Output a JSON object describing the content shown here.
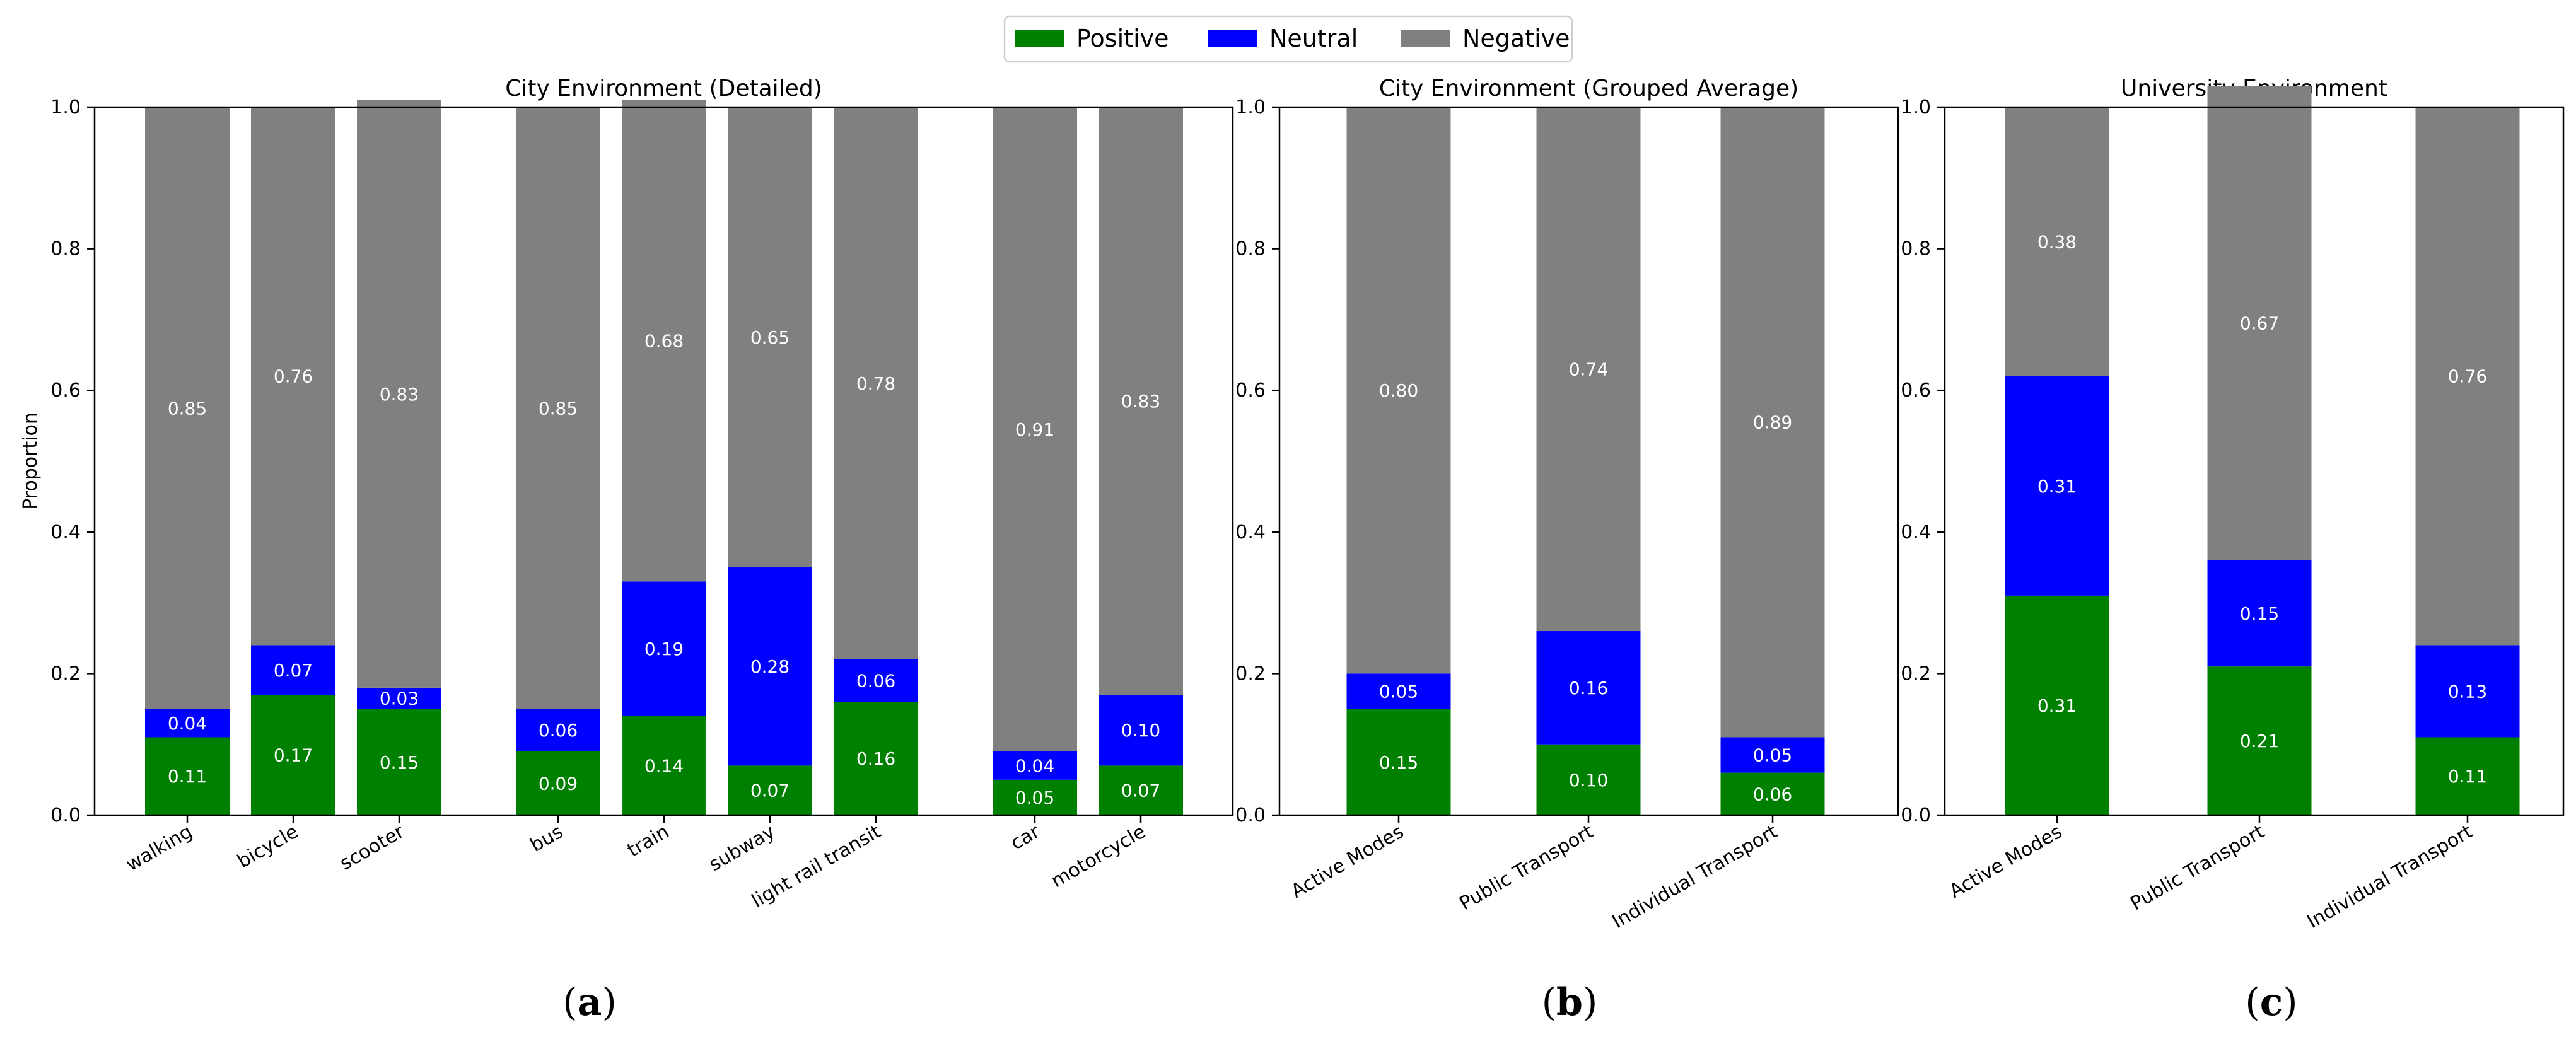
{
  "legend": {
    "placement": "top-center",
    "entries": [
      {
        "label": "Positive",
        "color": "#008000"
      },
      {
        "label": "Neutral",
        "color": "#0000ff"
      },
      {
        "label": "Negative",
        "color": "#808080"
      }
    ]
  },
  "chart_data": [
    {
      "type": "bar",
      "stacked": true,
      "title": "City Environment (Detailed)",
      "ylabel": "Proportion",
      "ylim": [
        0,
        1
      ],
      "yticks": [
        "0.0",
        "0.2",
        "0.4",
        "0.6",
        "0.8",
        "1.0"
      ],
      "panel_label": {
        "letter": "a",
        "open": "(",
        "close": ")"
      },
      "categories": [
        "walking",
        "bicycle",
        "scooter",
        "bus",
        "train",
        "subway",
        "light rail transit",
        "car",
        "motorcycle"
      ],
      "groups": [
        [
          0,
          1,
          2
        ],
        [
          3,
          4,
          5,
          6
        ],
        [
          7,
          8
        ]
      ],
      "series": [
        {
          "name": "Positive",
          "values": [
            0.11,
            0.17,
            0.15,
            0.09,
            0.14,
            0.07,
            0.16,
            0.05,
            0.07
          ],
          "labels": [
            "0.11",
            "0.17",
            "0.15",
            "0.09",
            "0.14",
            "0.07",
            "0.16",
            "0.05",
            "0.07"
          ]
        },
        {
          "name": "Neutral",
          "values": [
            0.04,
            0.07,
            0.03,
            0.06,
            0.19,
            0.28,
            0.06,
            0.04,
            0.1
          ],
          "labels": [
            "0.04",
            "0.07",
            "0.03",
            "0.06",
            "0.19",
            "0.28",
            "0.06",
            "0.04",
            "0.10"
          ]
        },
        {
          "name": "Negative",
          "values": [
            0.85,
            0.76,
            0.83,
            0.85,
            0.68,
            0.65,
            0.78,
            0.91,
            0.83
          ],
          "labels": [
            "0.85",
            "0.76",
            "0.83",
            "0.85",
            "0.68",
            "0.65",
            "0.78",
            "0.91",
            "0.83"
          ]
        }
      ]
    },
    {
      "type": "bar",
      "stacked": true,
      "title": "City Environment (Grouped Average)",
      "ylabel": "",
      "ylim": [
        0,
        1
      ],
      "yticks": [
        "0.0",
        "0.2",
        "0.4",
        "0.6",
        "0.8",
        "1.0"
      ],
      "panel_label": {
        "letter": "b",
        "open": "(",
        "close": ")"
      },
      "categories": [
        "Active Modes",
        "Public Transport",
        "Individual Transport"
      ],
      "series": [
        {
          "name": "Positive",
          "values": [
            0.15,
            0.1,
            0.06
          ],
          "labels": [
            "0.15",
            "0.10",
            "0.06"
          ]
        },
        {
          "name": "Neutral",
          "values": [
            0.05,
            0.16,
            0.05
          ],
          "labels": [
            "0.05",
            "0.16",
            "0.05"
          ]
        },
        {
          "name": "Negative",
          "values": [
            0.8,
            0.74,
            0.89
          ],
          "labels": [
            "0.80",
            "0.74",
            "0.89"
          ]
        }
      ]
    },
    {
      "type": "bar",
      "stacked": true,
      "title": "University Environment",
      "ylabel": "",
      "ylim": [
        0,
        1
      ],
      "yticks": [
        "0.0",
        "0.2",
        "0.4",
        "0.6",
        "0.8",
        "1.0"
      ],
      "panel_label": {
        "letter": "c",
        "open": "(",
        "close": ")"
      },
      "categories": [
        "Active Modes",
        "Public Transport",
        "Individual Transport"
      ],
      "series": [
        {
          "name": "Positive",
          "values": [
            0.31,
            0.21,
            0.11
          ],
          "labels": [
            "0.31",
            "0.21",
            "0.11"
          ]
        },
        {
          "name": "Neutral",
          "values": [
            0.31,
            0.15,
            0.13
          ],
          "labels": [
            "0.31",
            "0.15",
            "0.13"
          ]
        },
        {
          "name": "Negative",
          "values": [
            0.38,
            0.67,
            0.76
          ],
          "labels": [
            "0.38",
            "0.67",
            "0.76"
          ]
        }
      ]
    }
  ]
}
